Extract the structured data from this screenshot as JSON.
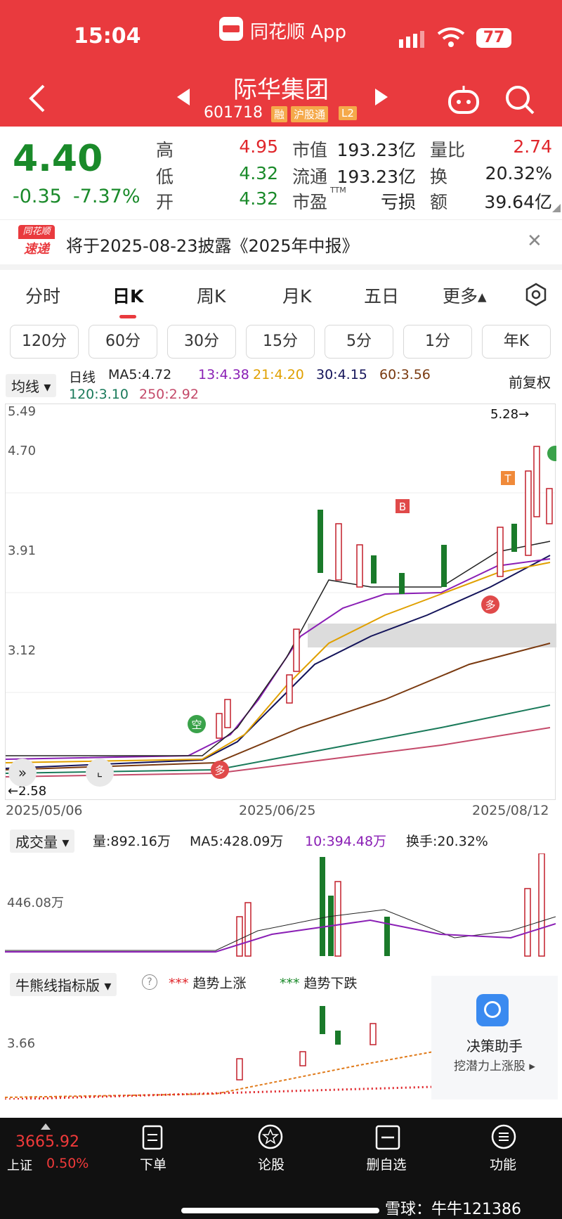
{
  "status": {
    "time": "15:04",
    "app_name": "同花顺 App",
    "battery": "77"
  },
  "stock": {
    "name": "际华集团",
    "code": "601718",
    "tags": [
      "融",
      "沪股通",
      "L2"
    ]
  },
  "quote": {
    "price": "4.40",
    "change": "-0.35",
    "change_pct": "-7.37%",
    "high_label": "高",
    "high": "4.95",
    "low_label": "低",
    "low": "4.32",
    "open_label": "开",
    "open": "4.32",
    "mktcap_label": "市值",
    "mktcap": "193.23亿",
    "float_label": "流通",
    "float": "193.23亿",
    "pe_label": "市盈",
    "pe_sup": "TTM",
    "pe": "亏损",
    "vr_label": "量比",
    "vr": "2.74",
    "turn_label": "换",
    "turn": "20.32%",
    "amt_label": "额",
    "amt": "39.64亿"
  },
  "notice": {
    "logo_top": "同花顺",
    "logo_bottom": "速递",
    "text": "将于2025-08-23披露《2025年中报》"
  },
  "tabs": [
    "分时",
    "日K",
    "周K",
    "月K",
    "五日",
    "更多▴"
  ],
  "periods": [
    "120分",
    "60分",
    "30分",
    "15分",
    "5分",
    "1分",
    "年K"
  ],
  "ma": {
    "selector": "均线",
    "daily": "日线",
    "ma5": "MA5:4.72",
    "ma13": "13:4.38",
    "ma21": "21:4.20",
    "ma30": "30:4.15",
    "ma60": "60:3.56",
    "ma120": "120:3.10",
    "ma250": "250:2.92",
    "adjust": "前复权",
    "colors": {
      "ma5": "#222222",
      "ma13": "#8a1fb5",
      "ma21": "#e0a000",
      "ma30": "#14145a",
      "ma60": "#7a3a10",
      "ma120": "#1a7a5a",
      "ma250": "#c44a6a"
    }
  },
  "kchart": {
    "y_ticks": [
      "5.49",
      "4.70",
      "3.91",
      "3.12"
    ],
    "max_label": "5.28→",
    "min_label": "←2.58",
    "dates": [
      "2025/05/06",
      "2025/06/25",
      "2025/08/12"
    ]
  },
  "volume": {
    "selector": "成交量",
    "vol": "量:892.16万",
    "ma5": "MA5:428.09万",
    "ma10": "10:394.48万",
    "turnover": "换手:20.32%",
    "y_tick": "446.08万"
  },
  "bullbear": {
    "selector": "牛熊线指标版",
    "help": "?",
    "up_legend": "趋势上涨",
    "down_legend": "趋势下跌",
    "y_tick": "3.66"
  },
  "assistant": {
    "title": "决策助手",
    "subtitle": "挖潜力上涨股 ▸"
  },
  "bottom_nav": {
    "index_value": "3665.92",
    "index_name": "上证",
    "index_pct": "0.50%",
    "items": [
      "下单",
      "论股",
      "删自选",
      "功能"
    ]
  },
  "watermark": "雪球：牛牛121386"
}
